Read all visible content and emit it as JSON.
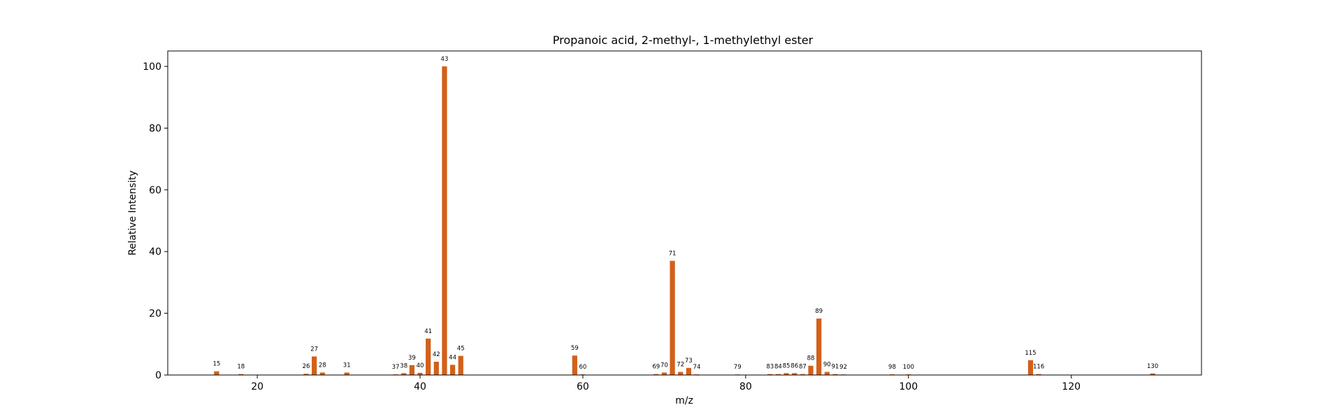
{
  "chart_data": {
    "type": "bar",
    "title": "Propanoic acid, 2-methyl-, 1-methylethyl ester",
    "xlabel": "m/z",
    "ylabel": "Relative Intensity",
    "xlim": [
      9,
      136
    ],
    "ylim": [
      0,
      105
    ],
    "xticks": [
      20,
      40,
      60,
      80,
      100,
      120
    ],
    "yticks": [
      0,
      20,
      40,
      60,
      80,
      100
    ],
    "grid": false,
    "bar_color": "#d2601a",
    "points": [
      {
        "x": 15,
        "y": 1.2,
        "label": "15"
      },
      {
        "x": 18,
        "y": 0.3,
        "label": "18"
      },
      {
        "x": 26,
        "y": 0.4,
        "label": "26"
      },
      {
        "x": 27,
        "y": 6.0,
        "label": "27"
      },
      {
        "x": 28,
        "y": 0.8,
        "label": "28"
      },
      {
        "x": 31,
        "y": 0.8,
        "label": "31"
      },
      {
        "x": 37,
        "y": 0.2,
        "label": "37"
      },
      {
        "x": 38,
        "y": 0.6,
        "label": "38"
      },
      {
        "x": 39,
        "y": 3.2,
        "label": "39"
      },
      {
        "x": 40,
        "y": 0.7,
        "label": "40"
      },
      {
        "x": 41,
        "y": 11.8,
        "label": "41"
      },
      {
        "x": 42,
        "y": 4.3,
        "label": "42"
      },
      {
        "x": 43,
        "y": 100,
        "label": "43"
      },
      {
        "x": 44,
        "y": 3.3,
        "label": "44"
      },
      {
        "x": 45,
        "y": 6.2,
        "label": "45"
      },
      {
        "x": 59,
        "y": 6.3,
        "label": "59"
      },
      {
        "x": 60,
        "y": 0.2,
        "label": "60"
      },
      {
        "x": 69,
        "y": 0.3,
        "label": "69"
      },
      {
        "x": 70,
        "y": 0.8,
        "label": "70"
      },
      {
        "x": 71,
        "y": 37.0,
        "label": "71"
      },
      {
        "x": 72,
        "y": 1.0,
        "label": "72"
      },
      {
        "x": 73,
        "y": 2.3,
        "label": "73"
      },
      {
        "x": 74,
        "y": 0.2,
        "label": "74"
      },
      {
        "x": 79,
        "y": 0.1,
        "label": "79"
      },
      {
        "x": 83,
        "y": 0.3,
        "label": "83"
      },
      {
        "x": 84,
        "y": 0.3,
        "label": "84"
      },
      {
        "x": 85,
        "y": 0.6,
        "label": "85"
      },
      {
        "x": 86,
        "y": 0.6,
        "label": "86"
      },
      {
        "x": 87,
        "y": 0.3,
        "label": "87"
      },
      {
        "x": 88,
        "y": 3.0,
        "label": "88"
      },
      {
        "x": 89,
        "y": 18.3,
        "label": "89"
      },
      {
        "x": 90,
        "y": 1.0,
        "label": "90"
      },
      {
        "x": 91,
        "y": 0.3,
        "label": "91"
      },
      {
        "x": 92,
        "y": 0.1,
        "label": "92"
      },
      {
        "x": 98,
        "y": 0.2,
        "label": "98"
      },
      {
        "x": 100,
        "y": 0.2,
        "label": "100"
      },
      {
        "x": 115,
        "y": 4.8,
        "label": "115"
      },
      {
        "x": 116,
        "y": 0.3,
        "label": "116"
      },
      {
        "x": 130,
        "y": 0.5,
        "label": "130"
      }
    ]
  }
}
